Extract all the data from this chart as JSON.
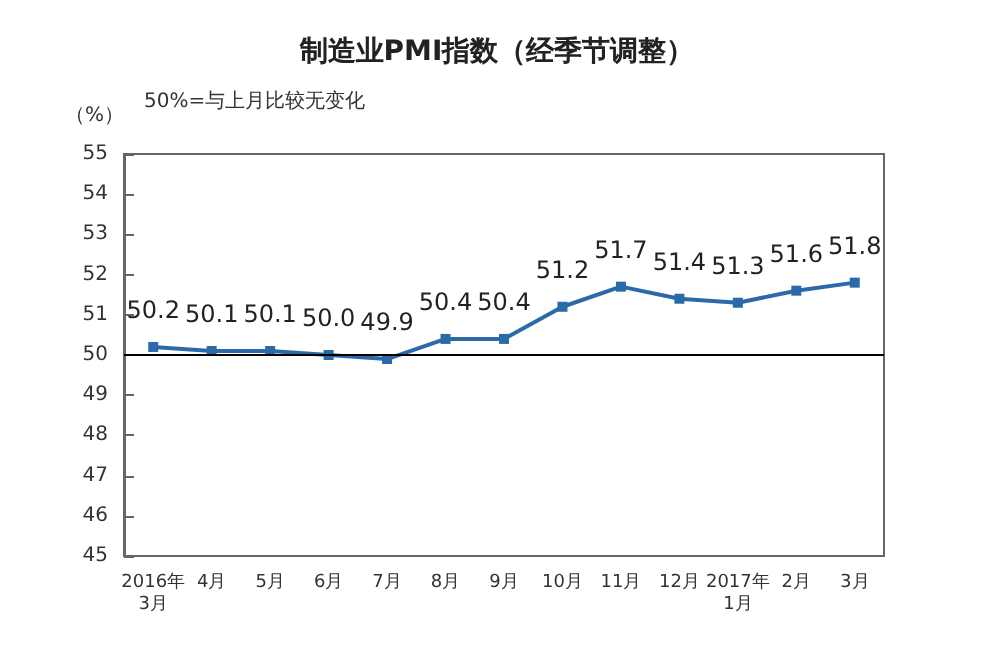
{
  "chart_data": {
    "type": "line",
    "title": "制造业PMI指数（经季节调整）",
    "ylabel": "（%）",
    "annotations": [
      "50%=与上月比较无变化"
    ],
    "categories": [
      "2016年\n3月",
      "4月",
      "5月",
      "6月",
      "7月",
      "8月",
      "9月",
      "10月",
      "11月",
      "12月",
      "2017年\n1月",
      "2月",
      "3月"
    ],
    "series": [
      {
        "color": "#2a6aa8",
        "values": [
          50.2,
          50.1,
          50.1,
          50.0,
          49.9,
          50.4,
          50.4,
          51.2,
          51.7,
          51.4,
          51.3,
          51.6,
          51.8
        ],
        "value_labels": [
          "50.2",
          "50.1",
          "50.1",
          "50.0",
          "49.9",
          "50.4",
          "50.4",
          "51.2",
          "51.7",
          "51.4",
          "51.3",
          "51.6",
          "51.8"
        ]
      }
    ],
    "ylim": [
      45,
      55
    ],
    "yticks": [
      45,
      46,
      47,
      48,
      49,
      50,
      51,
      52,
      53,
      54,
      55
    ],
    "ref_lines": [
      {
        "axis": "y",
        "value": 50,
        "label": null,
        "color": "#000000"
      }
    ],
    "grid": false,
    "marker": "square",
    "line_style": "solid"
  }
}
